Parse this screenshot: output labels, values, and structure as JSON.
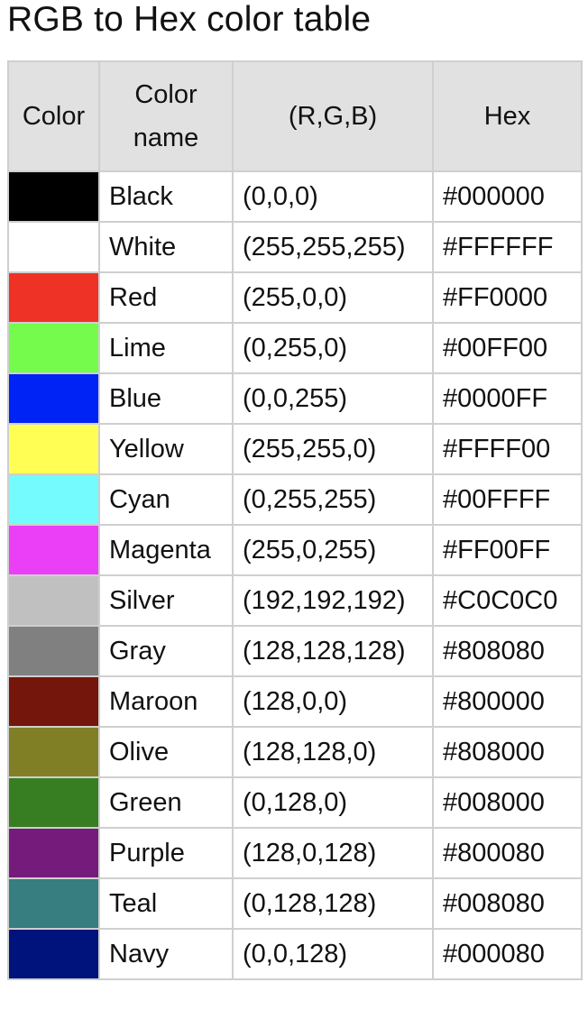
{
  "title": "RGB to Hex color table",
  "headers": {
    "color": "Color",
    "color_name": "Color name",
    "rgb": "(R,G,B)",
    "hex": "Hex"
  },
  "rows": [
    {
      "name": "Black",
      "rgb": "(0,0,0)",
      "hex": "#000000",
      "swatch": "#000000"
    },
    {
      "name": "White",
      "rgb": "(255,255,255)",
      "hex": "#FFFFFF",
      "swatch": "#FFFFFF"
    },
    {
      "name": "Red",
      "rgb": "(255,0,0)",
      "hex": "#FF0000",
      "swatch": "#EE3326"
    },
    {
      "name": "Lime",
      "rgb": "(0,255,0)",
      "hex": "#00FF00",
      "swatch": "#75FB4C"
    },
    {
      "name": "Blue",
      "rgb": "(0,0,255)",
      "hex": "#0000FF",
      "swatch": "#0023F5"
    },
    {
      "name": "Yellow",
      "rgb": "(255,255,0)",
      "hex": "#FFFF00",
      "swatch": "#FFFE54"
    },
    {
      "name": "Cyan",
      "rgb": "(0,255,255)",
      "hex": "#00FFFF",
      "swatch": "#73FBFD"
    },
    {
      "name": "Magenta",
      "rgb": "(255,0,255)",
      "hex": "#FF00FF",
      "swatch": "#EA3FF7"
    },
    {
      "name": "Silver",
      "rgb": "(192,192,192)",
      "hex": "#C0C0C0",
      "swatch": "#C0C0C0"
    },
    {
      "name": "Gray",
      "rgb": "(128,128,128)",
      "hex": "#808080",
      "swatch": "#808080"
    },
    {
      "name": "Maroon",
      "rgb": "(128,0,0)",
      "hex": "#800000",
      "swatch": "#75160C"
    },
    {
      "name": "Olive",
      "rgb": "(128,128,0)",
      "hex": "#808000",
      "swatch": "#817F26"
    },
    {
      "name": "Green",
      "rgb": "(0,128,0)",
      "hex": "#008000",
      "swatch": "#377E22"
    },
    {
      "name": "Purple",
      "rgb": "(128,0,128)",
      "hex": "#800080",
      "swatch": "#741B7C"
    },
    {
      "name": "Teal",
      "rgb": "(0,128,128)",
      "hex": "#008080",
      "swatch": "#367E7F"
    },
    {
      "name": "Navy",
      "rgb": "(0,0,128)",
      "hex": "#000080",
      "swatch": "#00127B"
    }
  ]
}
